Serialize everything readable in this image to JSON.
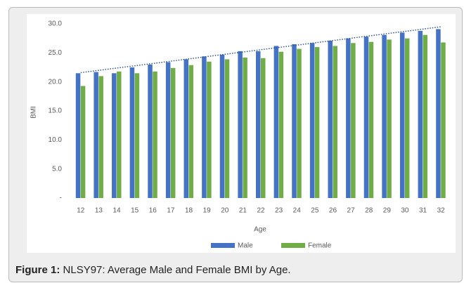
{
  "chart_data": {
    "type": "bar",
    "y_axis_title": "BMI",
    "x_axis_title": "Age",
    "categories": [
      "12",
      "13",
      "14",
      "15",
      "16",
      "17",
      "18",
      "19",
      "20",
      "21",
      "22",
      "23",
      "24",
      "25",
      "26",
      "27",
      "28",
      "29",
      "30",
      "31",
      "32"
    ],
    "series": [
      {
        "name": "Male",
        "color": "#4472c4",
        "values": [
          21.5,
          21.7,
          21.5,
          22.5,
          23.0,
          23.4,
          23.9,
          24.4,
          24.7,
          25.3,
          25.3,
          26.2,
          26.5,
          26.7,
          27.1,
          27.5,
          27.8,
          28.1,
          28.5,
          28.8,
          29.1
        ]
      },
      {
        "name": "Female",
        "color": "#70ad47",
        "values": [
          19.3,
          21.0,
          21.8,
          21.5,
          21.8,
          22.4,
          22.9,
          23.5,
          23.9,
          24.2,
          24.1,
          25.2,
          25.7,
          26.0,
          26.2,
          26.7,
          26.9,
          27.3,
          27.5,
          28.1,
          26.8
        ]
      }
    ],
    "trendline": {
      "color": "#2f5597",
      "values": [
        21.6,
        29.5
      ]
    },
    "ylim": [
      0,
      30
    ],
    "yticks": [
      {
        "value": 0,
        "label": "-"
      },
      {
        "value": 5,
        "label": "5.0"
      },
      {
        "value": 10,
        "label": "10.0"
      },
      {
        "value": 15,
        "label": "15.0"
      },
      {
        "value": 20,
        "label": "20.0"
      },
      {
        "value": 25,
        "label": "25.0"
      },
      {
        "value": 30,
        "label": "30.0"
      }
    ],
    "grid": false,
    "legend": "bottom"
  },
  "caption": {
    "label": "Figure 1:",
    "text": "NLSY97: Average Male and Female BMI by Age."
  }
}
